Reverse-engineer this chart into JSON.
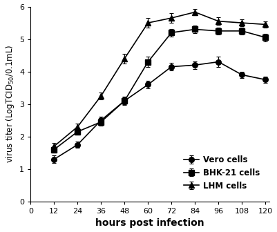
{
  "x": [
    12,
    24,
    36,
    48,
    60,
    72,
    84,
    96,
    108,
    120
  ],
  "vero": [
    1.3,
    1.75,
    2.5,
    3.1,
    3.6,
    4.15,
    4.2,
    4.3,
    3.9,
    3.75
  ],
  "vero_err": [
    0.12,
    0.1,
    0.12,
    0.1,
    0.12,
    0.12,
    0.12,
    0.15,
    0.1,
    0.1
  ],
  "bhk21": [
    1.6,
    2.15,
    2.45,
    3.1,
    4.3,
    5.2,
    5.3,
    5.25,
    5.25,
    5.05
  ],
  "bhk21_err": [
    0.1,
    0.1,
    0.12,
    0.12,
    0.15,
    0.12,
    0.12,
    0.1,
    0.1,
    0.12
  ],
  "lhm": [
    1.7,
    2.3,
    3.25,
    4.4,
    5.5,
    5.65,
    5.83,
    5.55,
    5.5,
    5.45
  ],
  "lhm_err": [
    0.1,
    0.1,
    0.1,
    0.15,
    0.15,
    0.15,
    0.1,
    0.12,
    0.1,
    0.1
  ],
  "xlabel": "hours post infection",
  "ylabel": "virus titer (LogTCID$_{50}$/0.1mL)",
  "xlim": [
    0,
    122
  ],
  "ylim": [
    0,
    6
  ],
  "xticks": [
    0,
    12,
    24,
    36,
    48,
    60,
    72,
    84,
    96,
    108,
    120
  ],
  "yticks": [
    0,
    1,
    2,
    3,
    4,
    5,
    6
  ],
  "legend_labels": [
    "Vero cells",
    "BHK-21 cells",
    "LHM cells"
  ],
  "line_color": "#000000",
  "marker_vero": "o",
  "marker_bhk21": "s",
  "marker_lhm": "^",
  "markersize": 5.5,
  "linewidth": 1.2,
  "background_color": "#ffffff",
  "legend_fontsize": 8.5,
  "axis_fontsize": 10,
  "tick_fontsize": 8
}
